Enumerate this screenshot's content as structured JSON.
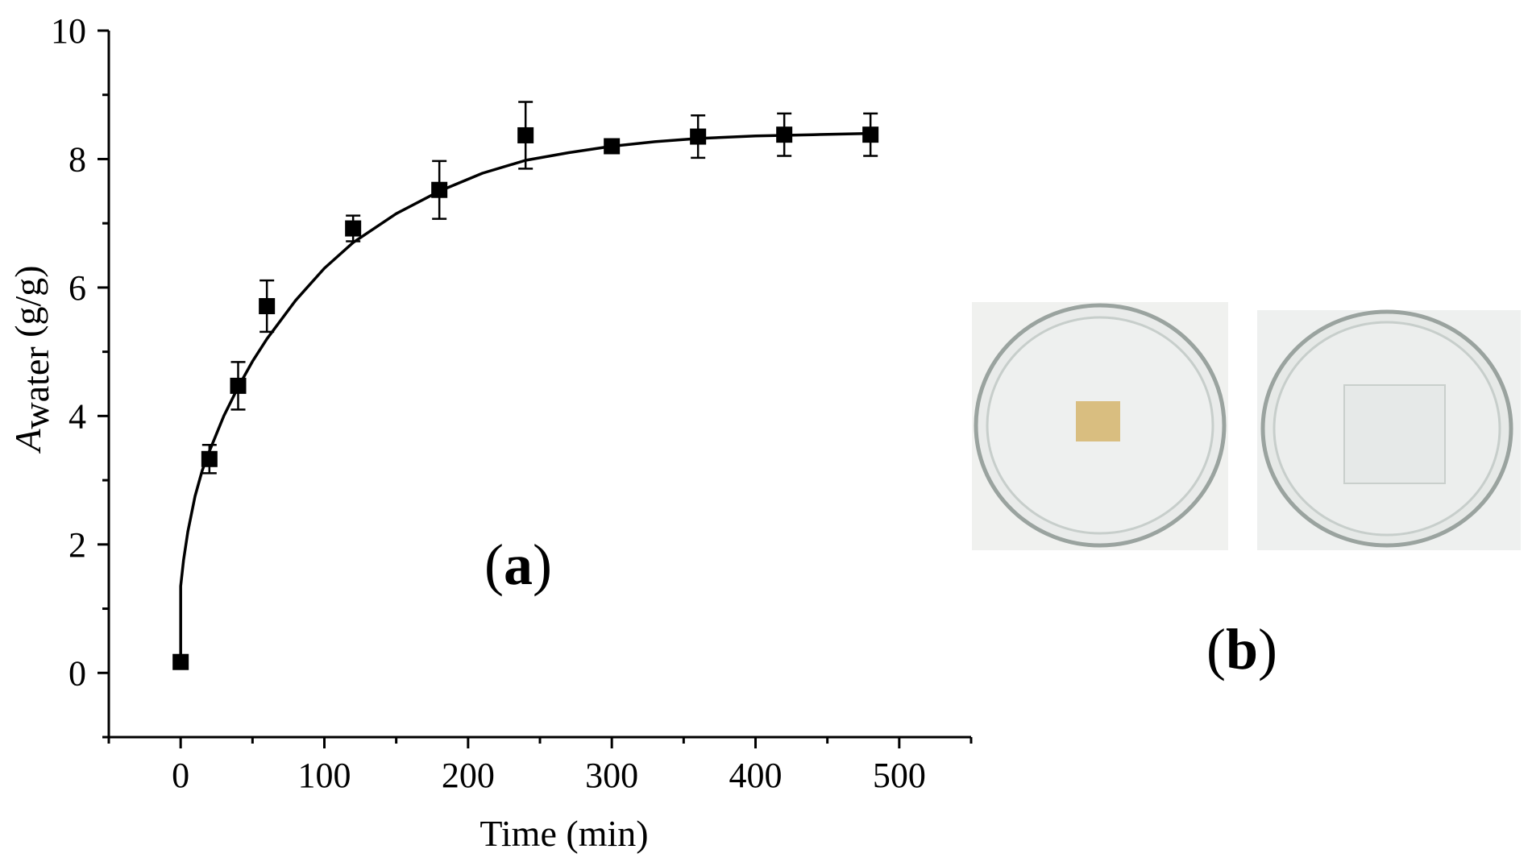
{
  "chart_data": {
    "type": "scatter",
    "title": "",
    "xlabel": "Time (min)",
    "ylabel": {
      "symbol": "A",
      "subscript": "water",
      "unit": " (g/g)"
    },
    "xlim": [
      -50,
      550
    ],
    "ylim": [
      -1,
      10
    ],
    "xticks": [
      0,
      100,
      200,
      300,
      400,
      500
    ],
    "yticks": [
      0,
      2,
      4,
      6,
      8,
      10
    ],
    "grid": false,
    "series": [
      {
        "marker": "square",
        "color": "#000000",
        "points": [
          {
            "x": 0,
            "y": 0.17,
            "err": 0
          },
          {
            "x": 20,
            "y": 3.33,
            "err": 0.22
          },
          {
            "x": 40,
            "y": 4.47,
            "err": 0.37
          },
          {
            "x": 60,
            "y": 5.71,
            "err": 0.4
          },
          {
            "x": 120,
            "y": 6.92,
            "err": 0.2
          },
          {
            "x": 180,
            "y": 7.52,
            "err": 0.45
          },
          {
            "x": 240,
            "y": 8.37,
            "err": 0.52
          },
          {
            "x": 300,
            "y": 8.2,
            "err": 0.05
          },
          {
            "x": 360,
            "y": 8.35,
            "err": 0.33
          },
          {
            "x": 420,
            "y": 8.38,
            "err": 0.33
          },
          {
            "x": 480,
            "y": 8.38,
            "err": 0.33
          }
        ]
      }
    ],
    "fit_curve": {
      "color": "#000000",
      "points": [
        [
          0,
          0.17
        ],
        [
          0,
          1.35
        ],
        [
          2,
          1.75
        ],
        [
          5,
          2.2
        ],
        [
          10,
          2.75
        ],
        [
          15,
          3.15
        ],
        [
          20,
          3.45
        ],
        [
          30,
          4.0
        ],
        [
          40,
          4.45
        ],
        [
          50,
          4.85
        ],
        [
          60,
          5.2
        ],
        [
          80,
          5.8
        ],
        [
          100,
          6.3
        ],
        [
          120,
          6.7
        ],
        [
          150,
          7.15
        ],
        [
          180,
          7.5
        ],
        [
          210,
          7.78
        ],
        [
          240,
          7.98
        ],
        [
          270,
          8.1
        ],
        [
          300,
          8.2
        ],
        [
          330,
          8.27
        ],
        [
          360,
          8.32
        ],
        [
          400,
          8.36
        ],
        [
          440,
          8.38
        ],
        [
          480,
          8.4
        ]
      ]
    },
    "annotations": {
      "panel_a": "(a)",
      "panel_b": "(b)"
    },
    "photos": [
      {
        "name": "dry-sample-dish",
        "sample_color": "#d9be80"
      },
      {
        "name": "swollen-sample-dish",
        "sample_color": "#e6e9e8"
      }
    ]
  }
}
